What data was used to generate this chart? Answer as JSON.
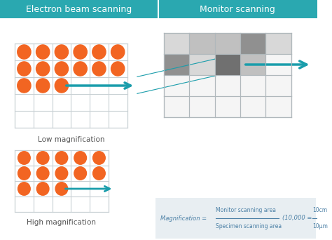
{
  "title_left": "Electron beam scanning",
  "title_right": "Monitor scanning",
  "title_bg": "#2aa8b0",
  "title_text_color": "white",
  "title_fontsize": 9,
  "bg_color": "white",
  "panel_bg": "#f0f0f0",
  "grid_line_color": "#cccccc",
  "orange_color": "#f26522",
  "teal_arrow_color": "#1a9dab",
  "gray_shades": [
    "#b0b0b0",
    "#c8c8c8",
    "#d8d8d8",
    "#e8e8e8",
    "#f0f0f0"
  ],
  "label_low": "Low magnification",
  "label_high": "High magnification",
  "formula_text": "Magnification = ",
  "formula_num": "Monitor scanning area",
  "formula_den": "Specimen scanning area",
  "formula_example": "(10,000 = ",
  "formula_num2": "10cm",
  "formula_den2": "10μm",
  "formula_close": ")",
  "formula_color": "#4a7fa5"
}
